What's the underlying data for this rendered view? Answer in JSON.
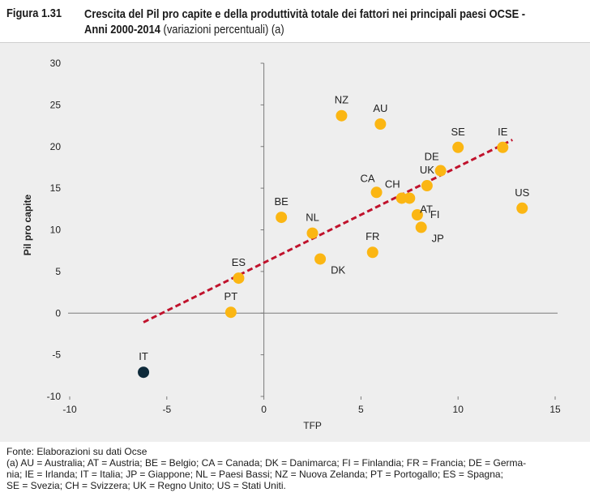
{
  "header": {
    "figure_label": "Figura 1.31",
    "title_bold_1": "Crescita del Pil pro capite e della produttività totale dei fattori nei principali paesi OCSE -",
    "title_bold_2": "Anni 2000-2014",
    "title_normal": " (variazioni percentuali) (a)"
  },
  "chart_data": {
    "type": "scatter",
    "xlabel": "TFP",
    "ylabel": "Pil pro capite",
    "xlim": [
      -10,
      15
    ],
    "ylim": [
      -10,
      30
    ],
    "xticks": [
      -10,
      -5,
      0,
      5,
      10,
      15
    ],
    "yticks": [
      -10,
      -5,
      0,
      5,
      10,
      15,
      20,
      25,
      30
    ],
    "colors": {
      "point": "#fbb613",
      "highlight": "#0e2a3a",
      "trend": "#c0122c",
      "background": "#eeeeee"
    },
    "points": [
      {
        "label": "NZ",
        "x": 4.0,
        "y": 23.7,
        "anchor": "above"
      },
      {
        "label": "AU",
        "x": 6.0,
        "y": 22.7,
        "anchor": "above"
      },
      {
        "label": "SE",
        "x": 10.0,
        "y": 19.9,
        "anchor": "above"
      },
      {
        "label": "IE",
        "x": 12.3,
        "y": 19.9,
        "anchor": "above"
      },
      {
        "label": "DE",
        "x": 9.1,
        "y": 17.1,
        "anchor": "above-left"
      },
      {
        "label": "UK",
        "x": 8.4,
        "y": 15.3,
        "anchor": "above"
      },
      {
        "label": "US",
        "x": 13.3,
        "y": 12.6,
        "anchor": "above"
      },
      {
        "label": "CA",
        "x": 5.8,
        "y": 14.5,
        "anchor": "above-left"
      },
      {
        "label": "CH",
        "x": 7.1,
        "y": 13.8,
        "anchor": "above-left"
      },
      {
        "label": "AT",
        "x": 7.5,
        "y": 13.8,
        "anchor": "right-below"
      },
      {
        "label": "FI",
        "x": 7.9,
        "y": 11.8,
        "anchor": "right"
      },
      {
        "label": "JP",
        "x": 8.1,
        "y": 10.3,
        "anchor": "right-below"
      },
      {
        "label": "BE",
        "x": 0.9,
        "y": 11.5,
        "anchor": "above"
      },
      {
        "label": "NL",
        "x": 2.5,
        "y": 9.6,
        "anchor": "above"
      },
      {
        "label": "FR",
        "x": 5.6,
        "y": 7.3,
        "anchor": "above"
      },
      {
        "label": "DK",
        "x": 2.9,
        "y": 6.5,
        "anchor": "right-below"
      },
      {
        "label": "ES",
        "x": -1.3,
        "y": 4.2,
        "anchor": "above"
      },
      {
        "label": "PT",
        "x": -1.7,
        "y": 0.1,
        "anchor": "above"
      },
      {
        "label": "IT",
        "x": -6.2,
        "y": -7.1,
        "anchor": "above",
        "highlight": true
      }
    ],
    "trendline": {
      "x": [
        -6.2,
        12.8
      ],
      "y": [
        -1.1,
        20.8
      ]
    }
  },
  "footer": {
    "source": "Fonte: Elaborazioni su dati Ocse",
    "note_1": "(a) AU = Australia; AT = Austria; BE = Belgio; CA = Canada; DK = Danimarca; FI = Finlandia; FR = Francia; DE = Germa-",
    "note_2": "nia; IE = Irlanda; IT = Italia; JP = Giappone; NL = Paesi Bassi; NZ = Nuova Zelanda; PT = Portogallo; ES = Spagna;",
    "note_3": "SE = Svezia; CH = Svizzera; UK = Regno Unito; US = Stati Uniti."
  }
}
